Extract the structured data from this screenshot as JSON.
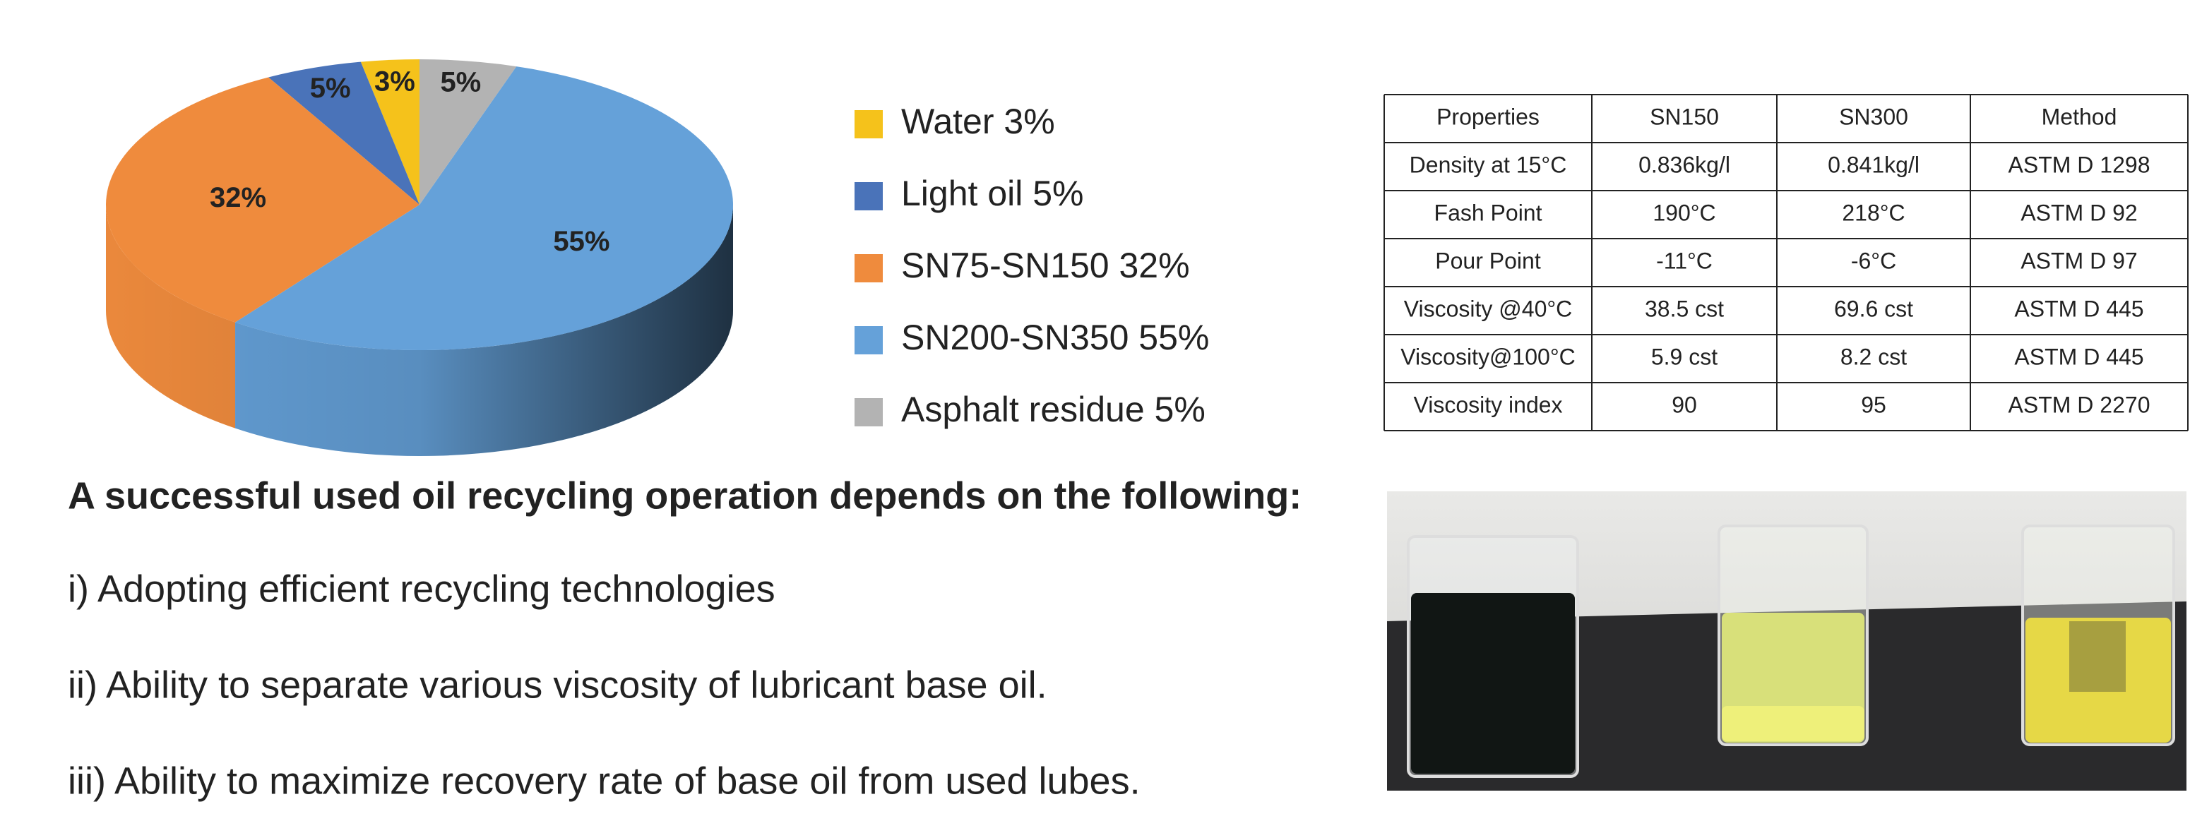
{
  "chart_data": {
    "type": "pie",
    "categories": [
      "Water 3%",
      "Light oil 5%",
      "SN75-SN150 32%",
      "SN200-SN350 55%",
      "Asphalt residue 5%"
    ],
    "values": [
      3,
      5,
      32,
      55,
      5
    ],
    "value_labels": [
      "3%",
      "5%",
      "32%",
      "55%",
      "5%"
    ],
    "colors": [
      "#f5c21b",
      "#4a73b9",
      "#ef8b3d",
      "#65a1d9",
      "#b3b3b3"
    ]
  },
  "table": {
    "header": [
      "Properties",
      "SN150",
      "SN300",
      "Method"
    ],
    "rows": [
      [
        "Density at 15°C",
        "0.836kg/l",
        "0.841kg/l",
        "ASTM D 1298"
      ],
      [
        "Fash Point",
        "190°C",
        "218°C",
        "ASTM D 92"
      ],
      [
        "Pour Point",
        "-11°C",
        "-6°C",
        "ASTM D 97"
      ],
      [
        "Viscosity @40°C",
        "38.5 cst",
        "69.6 cst",
        "ASTM D 445"
      ],
      [
        "Viscosity@100°C",
        "5.9 cst",
        "8.2 cst",
        "ASTM D 445"
      ],
      [
        "Viscosity index",
        "90",
        "95",
        "ASTM D 2270"
      ]
    ]
  },
  "heading": "A successful used oil recycling operation depends on the following:",
  "points": [
    "i) Adopting efficient recycling technologies",
    "ii) Ability to separate various viscosity of lubricant base oil.",
    "iii) Ability to maximize recovery rate of base oil from used lubes."
  ]
}
